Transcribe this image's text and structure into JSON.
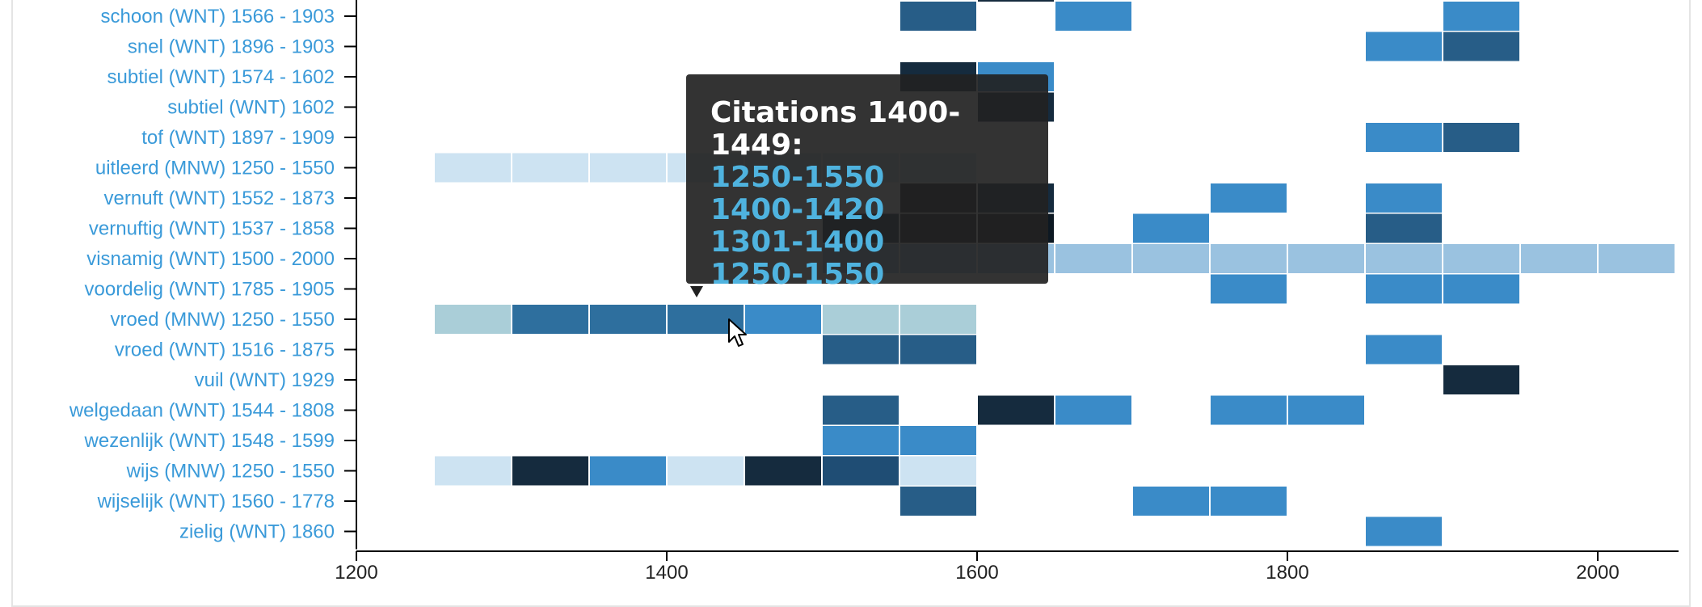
{
  "tooltip": {
    "title": "Citations 1400-1449:",
    "lines": [
      "1250-1550",
      "1400-1420",
      "1301-1400",
      "1250-1550"
    ]
  },
  "chart_data": {
    "type": "heatmap",
    "title": "",
    "xlabel": "",
    "ylabel": "",
    "xlim": [
      1200,
      2050
    ],
    "x_ticks": [
      1200,
      1400,
      1600,
      1800,
      2000
    ],
    "bin_width": 50,
    "grid": false,
    "legend": "none",
    "colors": {
      "c1": "#cde3f2",
      "c2": "#aaced8",
      "c3": "#9ac2e0",
      "c4": "#3a8bc8",
      "c5": "#2e6f9e",
      "c6": "#275d87",
      "c7": "#1f4d74",
      "c8": "#152b3e",
      "c9": "#0d1822"
    },
    "rows": [
      {
        "label": "schoon (WNT) 1566 - 1903",
        "cells": [
          [
            1550,
            "c6"
          ],
          [
            1650,
            "c4"
          ],
          [
            1900,
            "c4"
          ]
        ]
      },
      {
        "label": "snel (WNT) 1896 - 1903",
        "cells": [
          [
            1850,
            "c4"
          ],
          [
            1900,
            "c6"
          ]
        ]
      },
      {
        "label": "subtiel (WNT) 1574 - 1602",
        "cells": [
          [
            1550,
            "c8"
          ],
          [
            1600,
            "c4"
          ]
        ]
      },
      {
        "label": "subtiel (WNT) 1602",
        "cells": [
          [
            1600,
            "c8"
          ]
        ]
      },
      {
        "label": "tof (WNT) 1897 - 1909",
        "cells": [
          [
            1850,
            "c4"
          ],
          [
            1900,
            "c6"
          ]
        ]
      },
      {
        "label": "uitleerd (MNW) 1250 - 1550",
        "cells": [
          [
            1250,
            "c1"
          ],
          [
            1300,
            "c1"
          ],
          [
            1350,
            "c1"
          ],
          [
            1400,
            "c1"
          ],
          [
            1450,
            "c1"
          ],
          [
            1500,
            "c1"
          ],
          [
            1550,
            "c1"
          ]
        ]
      },
      {
        "label": "vernuft (WNT) 1552 - 1873",
        "cells": [
          [
            1550,
            "c9"
          ],
          [
            1600,
            "c8"
          ],
          [
            1750,
            "c4"
          ],
          [
            1850,
            "c4"
          ]
        ]
      },
      {
        "label": "vernuftig (WNT) 1537 - 1858",
        "cells": [
          [
            1500,
            "c8"
          ],
          [
            1550,
            "c9"
          ],
          [
            1600,
            "c9"
          ],
          [
            1700,
            "c4"
          ],
          [
            1850,
            "c6"
          ]
        ]
      },
      {
        "label": "visnamig (WNT) 1500 - 2000",
        "cells": [
          [
            1500,
            "c3"
          ],
          [
            1550,
            "c3"
          ],
          [
            1600,
            "c3"
          ],
          [
            1650,
            "c3"
          ],
          [
            1700,
            "c3"
          ],
          [
            1750,
            "c3"
          ],
          [
            1800,
            "c3"
          ],
          [
            1850,
            "c3"
          ],
          [
            1900,
            "c3"
          ],
          [
            1950,
            "c3"
          ],
          [
            2000,
            "c3"
          ]
        ]
      },
      {
        "label": "voordelig (WNT) 1785 - 1905",
        "cells": [
          [
            1750,
            "c4"
          ],
          [
            1850,
            "c4"
          ],
          [
            1900,
            "c4"
          ]
        ]
      },
      {
        "label": "vroed (MNW) 1250 - 1550",
        "cells": [
          [
            1250,
            "c2"
          ],
          [
            1300,
            "c5"
          ],
          [
            1350,
            "c5"
          ],
          [
            1400,
            "c5"
          ],
          [
            1450,
            "c4"
          ],
          [
            1500,
            "c2"
          ],
          [
            1550,
            "c2"
          ]
        ]
      },
      {
        "label": "vroed (WNT) 1516 - 1875",
        "cells": [
          [
            1500,
            "c6"
          ],
          [
            1550,
            "c6"
          ],
          [
            1850,
            "c4"
          ]
        ]
      },
      {
        "label": "vuil (WNT) 1929",
        "cells": [
          [
            1900,
            "c8"
          ]
        ]
      },
      {
        "label": "welgedaan (WNT) 1544 - 1808",
        "cells": [
          [
            1500,
            "c6"
          ],
          [
            1600,
            "c8"
          ],
          [
            1650,
            "c4"
          ],
          [
            1750,
            "c4"
          ],
          [
            1800,
            "c4"
          ]
        ]
      },
      {
        "label": "wezenlijk (WNT) 1548 - 1599",
        "cells": [
          [
            1500,
            "c4"
          ],
          [
            1550,
            "c4"
          ]
        ]
      },
      {
        "label": "wijs (MNW) 1250 - 1550",
        "cells": [
          [
            1250,
            "c1"
          ],
          [
            1300,
            "c8"
          ],
          [
            1350,
            "c4"
          ],
          [
            1400,
            "c1"
          ],
          [
            1450,
            "c8"
          ],
          [
            1500,
            "c7"
          ],
          [
            1550,
            "c1"
          ]
        ]
      },
      {
        "label": "wijselijk (WNT) 1560 - 1778",
        "cells": [
          [
            1550,
            "c6"
          ],
          [
            1700,
            "c4"
          ],
          [
            1750,
            "c4"
          ]
        ]
      },
      {
        "label": "zielig (WNT) 1860",
        "cells": [
          [
            1850,
            "c4"
          ]
        ]
      }
    ],
    "top_partial_cells": [
      [
        1600,
        "c8"
      ]
    ]
  }
}
